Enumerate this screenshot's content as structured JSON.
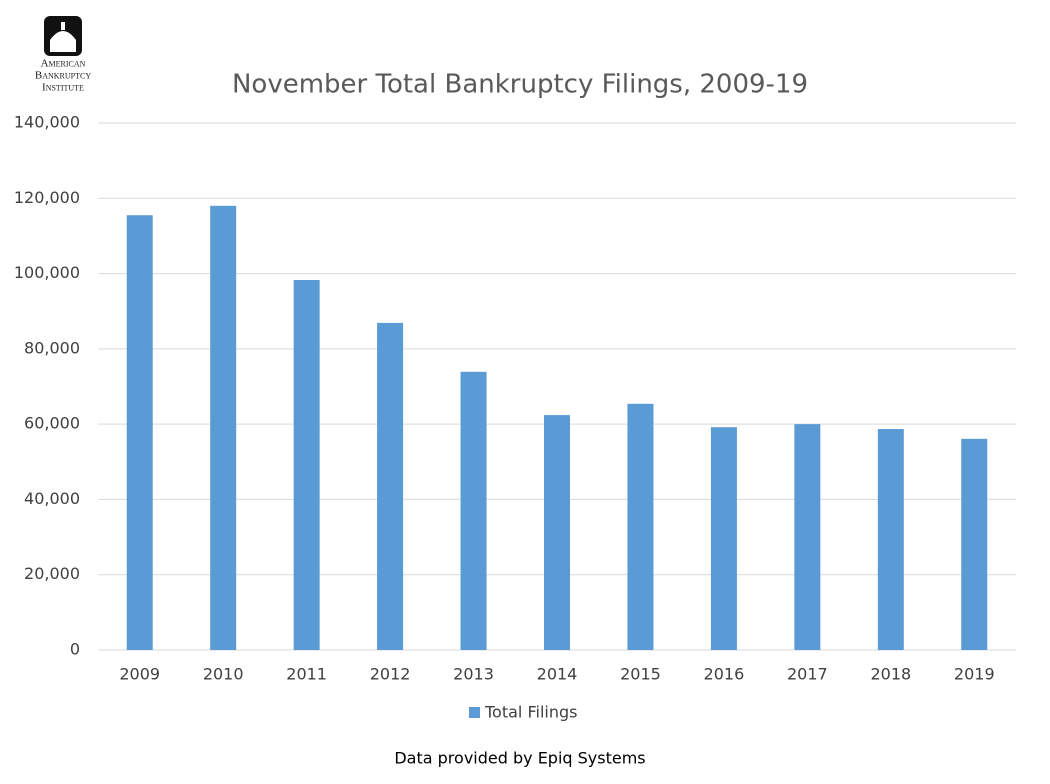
{
  "logo": {
    "lines": [
      "American",
      "Bankruptcy",
      "Institute"
    ]
  },
  "chart_data": {
    "type": "bar",
    "title": "November Total Bankruptcy Filings, 2009-19",
    "categories": [
      "2009",
      "2010",
      "2011",
      "2012",
      "2013",
      "2014",
      "2015",
      "2016",
      "2017",
      "2018",
      "2019"
    ],
    "series": [
      {
        "name": "Total Filings",
        "color": "#5b9bd5",
        "values": [
          115500,
          118000,
          98300,
          86900,
          73900,
          62400,
          65400,
          59200,
          60000,
          58700,
          56100
        ]
      }
    ],
    "ylim": [
      0,
      140000
    ],
    "yticks": [
      0,
      {
        "value": 20000,
        "label": "20,000"
      },
      {
        "value": 40000,
        "label": "40,000"
      },
      {
        "value": 60000,
        "label": "60,000"
      },
      {
        "value": 80000,
        "label": "80,000"
      },
      {
        "value": 100000,
        "label": "100,000"
      },
      {
        "value": 120000,
        "label": "120,000"
      },
      {
        "value": 140000,
        "label": "140,000"
      }
    ],
    "grid": true,
    "legend": "bottom"
  },
  "source": "Data provided by Epiq Systems"
}
